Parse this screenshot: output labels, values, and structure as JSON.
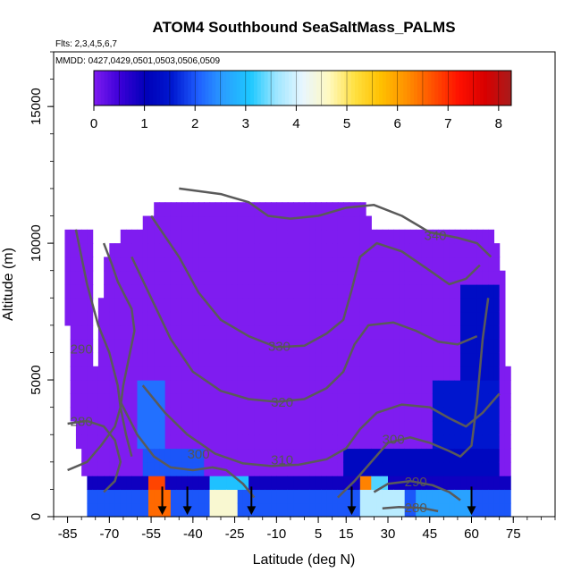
{
  "chart_data": {
    "type": "heatmap",
    "title": "ATOM4 Southbound SeaSaltMass_PALMS",
    "flights_label": "Flts: 2,3,4,5,6,7",
    "dates_label": "MMDD: 0427,0429,0501,0503,0506,0509",
    "xlabel": "Latitude (deg N)",
    "ylabel": "Altitude (m)",
    "xlim": [
      -90,
      90
    ],
    "ylim": [
      0,
      17000
    ],
    "x_ticks": [
      -85,
      -70,
      -55,
      -40,
      -25,
      -10,
      5,
      15,
      30,
      45,
      60,
      75
    ],
    "x_tick_labels": [
      "-85",
      "-70",
      "-55",
      "-40",
      "-25",
      "-10",
      "5",
      "15",
      "30",
      "45",
      "60",
      "75"
    ],
    "y_ticks": [
      0,
      5000,
      10000,
      15000
    ],
    "y_tick_labels": [
      "0",
      "5000",
      "10000",
      "15000"
    ],
    "colorbar": {
      "min": 0,
      "max": 8.25,
      "ticks": [
        0,
        1,
        2,
        3,
        4,
        5,
        6,
        7,
        8
      ],
      "tick_labels": [
        "0",
        "1",
        "2",
        "3",
        "4",
        "5",
        "6",
        "7",
        "8"
      ],
      "colors": [
        "#7f1cf0",
        "#3b00d8",
        "#0000b8",
        "#0018d0",
        "#1f5fff",
        "#2aa0ff",
        "#1cc8ff",
        "#9ee6ff",
        "#e8f6ff",
        "#fff9c0",
        "#ffe040",
        "#ffc000",
        "#ff9000",
        "#ff5000",
        "#ff1000",
        "#d80000",
        "#a81c1c"
      ]
    },
    "contour_labels": [
      {
        "text": "340",
        "lat": 47,
        "alt": 10250
      },
      {
        "text": "330",
        "lat": -9,
        "alt": 6200
      },
      {
        "text": "320",
        "lat": -8,
        "alt": 4150
      },
      {
        "text": "310",
        "lat": -8,
        "alt": 2050
      },
      {
        "text": "300",
        "lat": -38,
        "alt": 2250
      },
      {
        "text": "300",
        "lat": 32,
        "alt": 2800
      },
      {
        "text": "290",
        "lat": -80,
        "alt": 6100
      },
      {
        "text": "280",
        "lat": -80,
        "alt": 3450
      },
      {
        "text": "290",
        "lat": 40,
        "alt": 1250
      },
      {
        "text": "280",
        "lat": 40,
        "alt": 300
      }
    ],
    "contours": [
      {
        "level": 340,
        "points": [
          [
            -45,
            12000
          ],
          [
            -30,
            11800
          ],
          [
            -20,
            11500
          ],
          [
            -13,
            11000
          ],
          [
            -5,
            10900
          ],
          [
            5,
            11000
          ],
          [
            15,
            11300
          ],
          [
            25,
            11400
          ],
          [
            35,
            11000
          ],
          [
            45,
            10400
          ],
          [
            55,
            10200
          ],
          [
            62,
            10000
          ],
          [
            67,
            9500
          ]
        ]
      },
      {
        "level": 330,
        "points": [
          [
            -55,
            11000
          ],
          [
            -45,
            9500
          ],
          [
            -38,
            8200
          ],
          [
            -30,
            7200
          ],
          [
            -20,
            6600
          ],
          [
            -10,
            6200
          ],
          [
            0,
            6250
          ],
          [
            8,
            6700
          ],
          [
            14,
            7200
          ],
          [
            17,
            8300
          ],
          [
            20,
            9500
          ],
          [
            26,
            10000
          ],
          [
            35,
            9700
          ],
          [
            45,
            9000
          ],
          [
            52,
            8500
          ],
          [
            58,
            8700
          ],
          [
            63,
            9200
          ]
        ]
      },
      {
        "level": 320,
        "points": [
          [
            -62,
            9500
          ],
          [
            -55,
            8000
          ],
          [
            -48,
            6500
          ],
          [
            -40,
            5300
          ],
          [
            -30,
            4600
          ],
          [
            -20,
            4300
          ],
          [
            -10,
            4200
          ],
          [
            0,
            4300
          ],
          [
            8,
            4700
          ],
          [
            14,
            5300
          ],
          [
            18,
            6300
          ],
          [
            23,
            7000
          ],
          [
            32,
            7100
          ],
          [
            40,
            6800
          ],
          [
            48,
            6400
          ],
          [
            55,
            6300
          ],
          [
            62,
            6600
          ]
        ]
      },
      {
        "level": 310,
        "points": [
          [
            -58,
            4800
          ],
          [
            -50,
            3800
          ],
          [
            -42,
            3000
          ],
          [
            -32,
            2300
          ],
          [
            -22,
            1950
          ],
          [
            -12,
            1850
          ],
          [
            -2,
            1900
          ],
          [
            8,
            2100
          ],
          [
            15,
            2500
          ],
          [
            20,
            3200
          ],
          [
            26,
            3800
          ],
          [
            35,
            4100
          ],
          [
            45,
            4000
          ],
          [
            52,
            3600
          ],
          [
            58,
            3300
          ],
          [
            64,
            3800
          ],
          [
            70,
            4500
          ]
        ]
      },
      {
        "level": 300,
        "points": [
          [
            -66,
            4200
          ],
          [
            -60,
            3000
          ],
          [
            -54,
            2200
          ],
          [
            -48,
            1800
          ],
          [
            -40,
            1700
          ],
          [
            -33,
            1800
          ],
          [
            -28,
            1700
          ],
          [
            -22,
            1200
          ],
          [
            -18,
            700
          ]
        ]
      },
      {
        "level": 300,
        "points": [
          [
            12,
            700
          ],
          [
            18,
            1300
          ],
          [
            24,
            2000
          ],
          [
            30,
            2700
          ],
          [
            38,
            2900
          ],
          [
            45,
            2700
          ],
          [
            52,
            2400
          ],
          [
            56,
            2200
          ],
          [
            60,
            2600
          ],
          [
            62,
            4200
          ],
          [
            64,
            6500
          ],
          [
            66,
            8000
          ]
        ]
      },
      {
        "level": 290,
        "points": [
          [
            -82,
            10500
          ],
          [
            -78,
            8500
          ],
          [
            -74,
            7000
          ],
          [
            -70,
            6000
          ],
          [
            -67,
            4800
          ],
          [
            -66,
            4000
          ],
          [
            -64,
            3000
          ],
          [
            -62,
            2200
          ]
        ]
      },
      {
        "level": 290,
        "points": [
          [
            -72,
            10000
          ],
          [
            -69,
            9200
          ],
          [
            -67,
            8600
          ],
          [
            -64,
            8000
          ],
          [
            -62,
            7600
          ],
          [
            -61,
            6800
          ],
          [
            -63,
            5800
          ],
          [
            -65,
            4800
          ],
          [
            -66,
            4000
          ],
          [
            -68,
            3300
          ],
          [
            -73,
            2600
          ],
          [
            -78,
            2000
          ],
          [
            -85,
            1700
          ]
        ]
      },
      {
        "level": 290,
        "points": [
          [
            25,
            900
          ],
          [
            30,
            1200
          ],
          [
            38,
            1300
          ],
          [
            46,
            1150
          ],
          [
            52,
            900
          ],
          [
            56,
            600
          ]
        ]
      },
      {
        "level": 280,
        "points": [
          [
            -85,
            3400
          ],
          [
            -78,
            3500
          ],
          [
            -72,
            3300
          ],
          [
            -68,
            2800
          ],
          [
            -66,
            2000
          ],
          [
            -68,
            1300
          ],
          [
            -72,
            900
          ]
        ]
      },
      {
        "level": 280,
        "points": [
          [
            28,
            300
          ],
          [
            34,
            350
          ],
          [
            42,
            320
          ],
          [
            48,
            200
          ]
        ]
      }
    ],
    "flight_markers_lat": [
      -51,
      -42,
      -19,
      17,
      60
    ]
  }
}
